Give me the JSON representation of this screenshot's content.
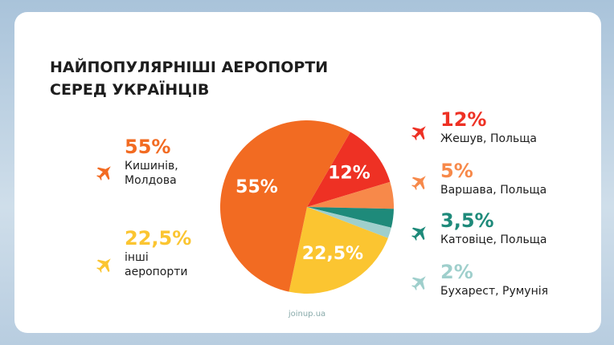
{
  "chart_data": {
    "type": "pie",
    "title": "НАЙПОПУЛЯРНІШІ АЕРОПОРТИ\nСЕРЕД УКРАЇНЦІВ",
    "categories": [
      "Жешув, Польща",
      "Варшава, Польща",
      "Катовіце, Польща",
      "Бухарест, Румунія",
      "інші аеропорти",
      "Кишинів, Молдова"
    ],
    "values": [
      12,
      5,
      3.5,
      2,
      22.5,
      55
    ],
    "value_labels": [
      "12%",
      "5%",
      "3,5%",
      "2%",
      "22,5%",
      "55%"
    ],
    "colors": [
      "#ee3124",
      "#f7894a",
      "#1e8a7a",
      "#9fcfcc",
      "#fbc531",
      "#f26b22"
    ],
    "source": "joinup.ua"
  }
}
